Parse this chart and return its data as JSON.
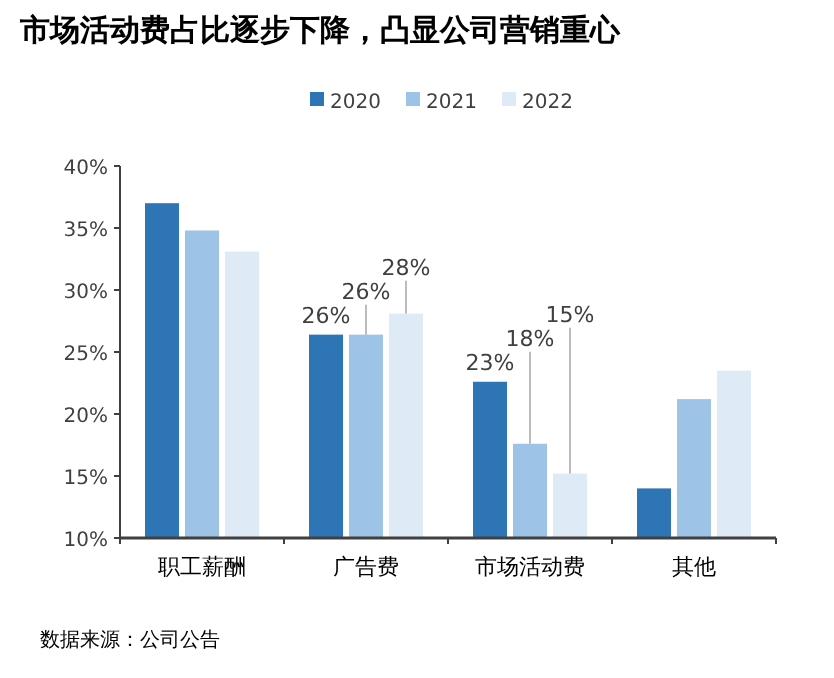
{
  "chart_data": {
    "type": "bar",
    "title": "市场活动费占比逐步下降，凸显公司营销重心",
    "categories": [
      "职工薪酬",
      "广告费",
      "市场活动费",
      "其他"
    ],
    "series": [
      {
        "name": "2020",
        "color": "#2e75b6",
        "values": [
          37.0,
          26.4,
          22.6,
          14.0
        ],
        "value_labels": [
          null,
          "26%",
          "23%",
          null
        ]
      },
      {
        "name": "2021",
        "color": "#9dc3e6",
        "values": [
          34.8,
          26.4,
          17.6,
          21.2
        ],
        "value_labels": [
          null,
          "26%",
          "18%",
          null
        ]
      },
      {
        "name": "2022",
        "color": "#deebf7",
        "values": [
          33.1,
          28.1,
          15.2,
          23.5
        ],
        "value_labels": [
          null,
          "28%",
          "15%",
          null
        ]
      }
    ],
    "ylim": [
      10,
      40
    ],
    "yticks": [
      {
        "value": 10,
        "label": "10%"
      },
      {
        "value": 15,
        "label": "15%"
      },
      {
        "value": 20,
        "label": "20%"
      },
      {
        "value": 25,
        "label": "25%"
      },
      {
        "value": 30,
        "label": "30%"
      },
      {
        "value": 35,
        "label": "35%"
      },
      {
        "value": 40,
        "label": "40%"
      }
    ],
    "legend": "top",
    "annotations": [
      "数据来源：公司公告"
    ]
  }
}
